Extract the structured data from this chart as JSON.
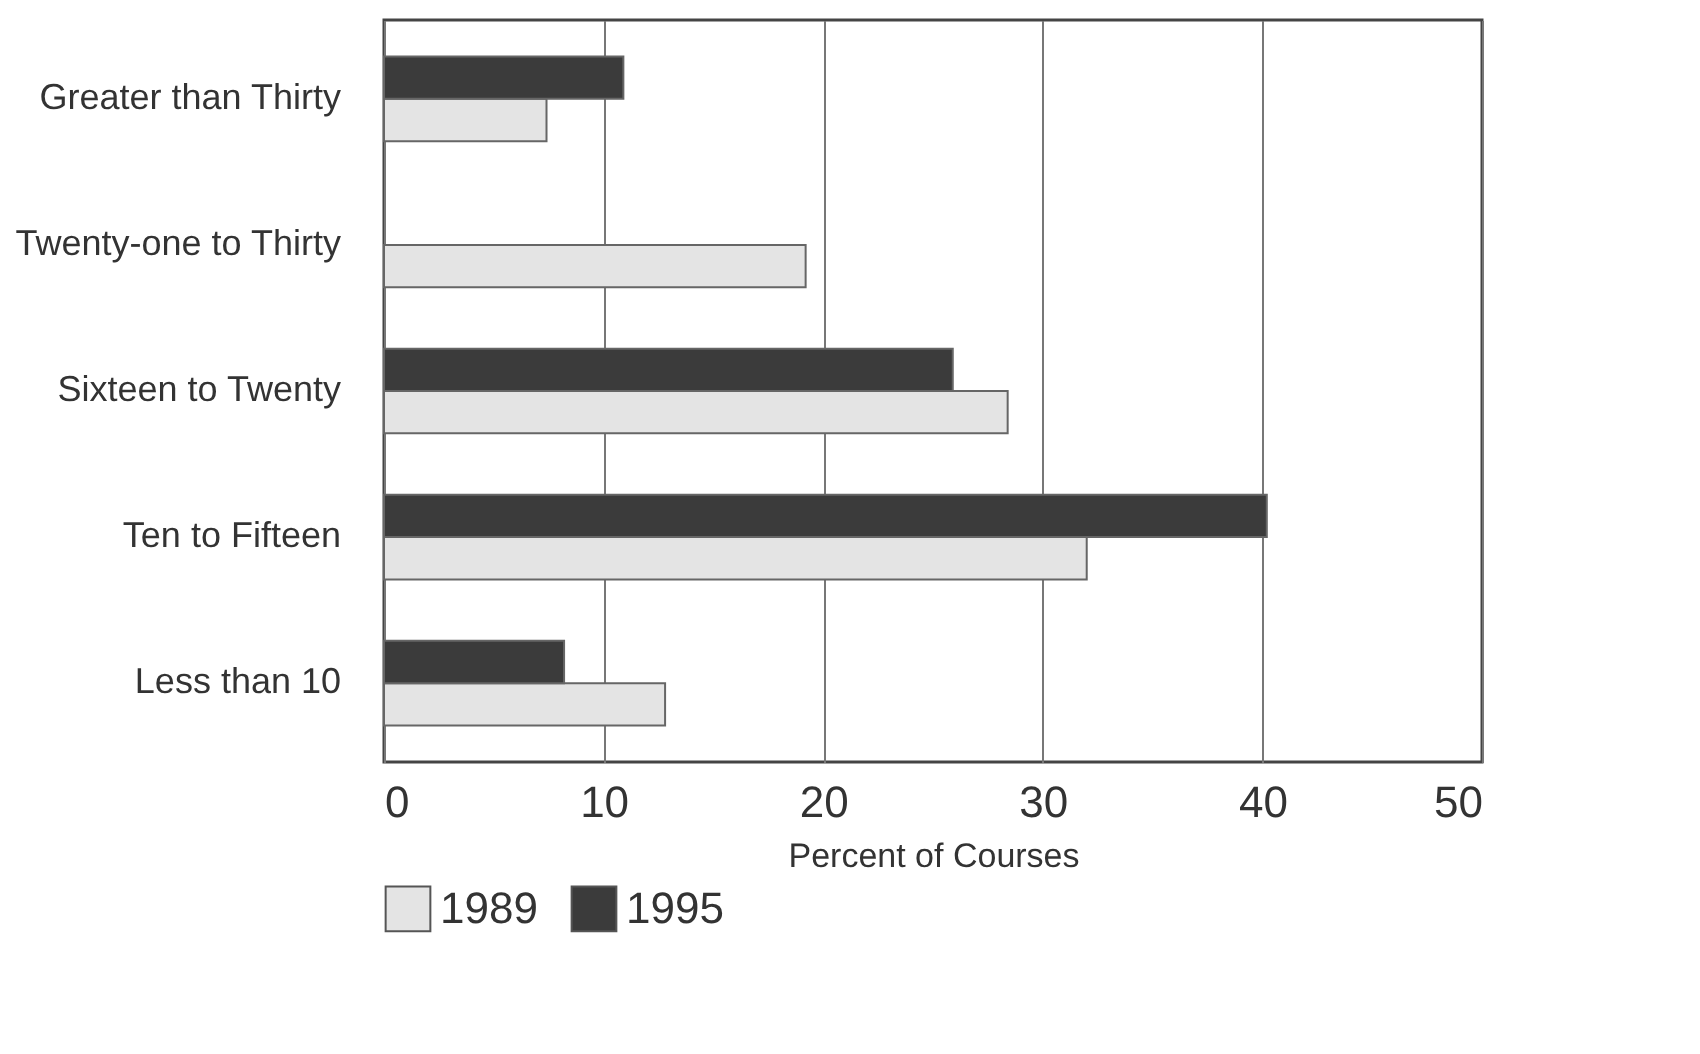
{
  "chart_data": {
    "type": "bar",
    "orientation": "horizontal",
    "xlabel": "Percent of Courses",
    "categories": [
      "Greater than Thirty",
      "Twenty-one to Thirty",
      "Sixteen to Twenty",
      "Ten to Fifteen",
      "Less than 10"
    ],
    "series": [
      {
        "name": "1989",
        "color": "#e4e4e4",
        "values": [
          7.4,
          19.2,
          28.4,
          32.0,
          12.8
        ]
      },
      {
        "name": "1995",
        "color": "#3b3b3b",
        "values": [
          10.9,
          null,
          25.9,
          40.2,
          8.2
        ]
      }
    ],
    "xlim": [
      0,
      50
    ],
    "xticks": [
      0,
      10,
      20,
      30,
      40,
      50
    ],
    "grid": "x",
    "legend": "bottom"
  }
}
